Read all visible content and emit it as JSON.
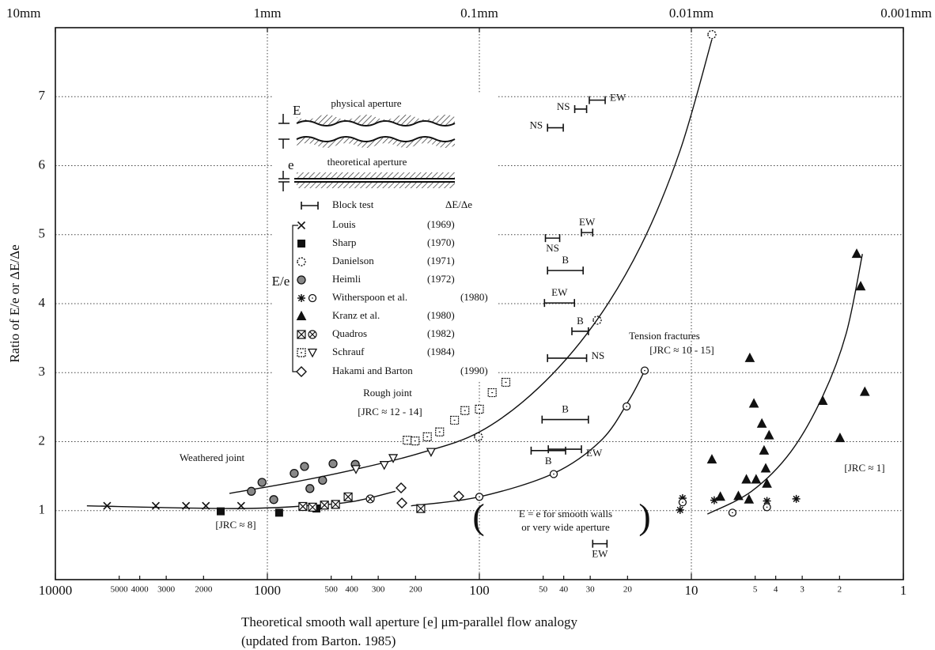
{
  "chart_data": {
    "type": "scatter",
    "ylabel": "Ratio of E/e or ΔE/Δe",
    "xlabel": "Theoretical smooth wall aperture [e] μm-parallel flow analogy",
    "xlabel_note": "(updated from Barton. 1985)",
    "xscale": "log",
    "xlim": [
      10000,
      1
    ],
    "ylim": [
      0,
      8
    ],
    "yticks": [
      1,
      2,
      3,
      4,
      5,
      6,
      7
    ],
    "xticks": [
      10000,
      5000,
      4000,
      3000,
      2000,
      1000,
      500,
      400,
      300,
      200,
      100,
      50,
      40,
      30,
      20,
      10,
      5,
      4,
      3,
      2,
      1
    ],
    "x2ticks": [
      {
        "value": 10000,
        "label": "10mm"
      },
      {
        "value": 1000,
        "label": "1mm"
      },
      {
        "value": 100,
        "label": "0.1mm"
      },
      {
        "value": 10,
        "label": "0.01mm"
      },
      {
        "value": 1,
        "label": "0.001mm"
      }
    ],
    "grid": true,
    "color": "#111111",
    "inset": {
      "E": "E",
      "physical": "physical aperture",
      "e": "e",
      "theoretical": "theoretical aperture"
    },
    "legend": {
      "block_test": "Block test",
      "ratio_label": "ΔE/Δe",
      "group_label": "E/e"
    },
    "series": [
      {
        "name": "Louis",
        "year": "(1969)",
        "groups": [
          {
            "marker": "x",
            "x": [
              5700,
              3360,
              2420,
              1950,
              1330
            ],
            "values": [
              1.07,
              1.07,
              1.07,
              1.07,
              1.07
            ]
          }
        ]
      },
      {
        "name": "Sharp",
        "year": "(1970)",
        "groups": [
          {
            "marker": "square-filled",
            "x": [
              1660,
              880,
              587
            ],
            "values": [
              0.99,
              0.97,
              1.03
            ]
          }
        ]
      },
      {
        "name": "Danielson",
        "year": "(1971)",
        "groups": [
          {
            "marker": "circle-dash",
            "x": [
              101,
              27.8,
              8.0
            ],
            "values": [
              2.07,
              3.76,
              7.9
            ]
          }
        ]
      },
      {
        "name": "Heimli",
        "year": "(1972)",
        "groups": [
          {
            "marker": "circle-dot",
            "x": [
              1190,
              1060,
              933,
              747,
              668,
              630,
              549,
              490,
              385
            ],
            "values": [
              1.28,
              1.41,
              1.16,
              1.54,
              1.64,
              1.32,
              1.44,
              1.68,
              1.67
            ]
          }
        ]
      },
      {
        "name": "Witherspoon et al.",
        "year": "(1980)",
        "groups": [
          {
            "marker": "star",
            "x": [
              11.3,
              11.0,
              7.8,
              4.4,
              3.2
            ],
            "values": [
              1.01,
              1.18,
              1.15,
              1.14,
              1.17
            ]
          },
          {
            "marker": "circle",
            "x": [
              100,
              44.6,
              20.2,
              16.6,
              11.0,
              6.4,
              4.4
            ],
            "values": [
              1.2,
              1.53,
              2.51,
              3.03,
              1.12,
              0.97,
              1.05
            ]
          }
        ]
      },
      {
        "name": "Kranz et al.",
        "year": "(1980)",
        "groups": [
          {
            "marker": "triangle-filled",
            "x": [
              1.66,
              1.59,
              1.52,
              1.99,
              2.4,
              5.3,
              5.07,
              4.65,
              4.3,
              4.54,
              4.46,
              8.0,
              7.3,
              6.0,
              5.5,
              4.95,
              4.4,
              5.35
            ],
            "values": [
              4.72,
              4.25,
              2.72,
              2.05,
              2.59,
              3.21,
              2.55,
              2.26,
              2.09,
              1.87,
              1.61,
              1.74,
              1.2,
              1.21,
              1.45,
              1.45,
              1.39,
              1.16
            ]
          }
        ]
      },
      {
        "name": "Quadros",
        "year": "(1982)",
        "groups": [
          {
            "marker": "square-x",
            "x": [
              680,
              612,
              538,
              477,
              416,
              189
            ],
            "values": [
              1.06,
              1.05,
              1.08,
              1.09,
              1.2,
              1.03
            ]
          },
          {
            "marker": "circle-x",
            "x": [
              327
            ],
            "values": [
              1.17
            ]
          }
        ]
      },
      {
        "name": "Schrauf",
        "year": "(1984)",
        "groups": [
          {
            "marker": "square-dot",
            "x": [
              219,
              201,
              176,
              154,
              131,
              117,
              100,
              87,
              75
            ],
            "values": [
              2.02,
              2.01,
              2.07,
              2.14,
              2.31,
              2.45,
              2.47,
              2.71,
              2.86
            ]
          },
          {
            "marker": "tri-down",
            "x": [
              382,
              281,
              255,
              169
            ],
            "values": [
              1.6,
              1.66,
              1.76,
              1.85
            ]
          }
        ]
      },
      {
        "name": "Hakami and Barton",
        "year": "(1990)",
        "groups": [
          {
            "marker": "diamond",
            "x": [
              234,
              232,
              125
            ],
            "values": [
              1.33,
              1.11,
              1.21
            ]
          }
        ]
      }
    ],
    "block_tests": [
      {
        "label": "EW",
        "y": 6.95,
        "x": [
          30.3,
          25.5
        ]
      },
      {
        "label": "NS",
        "y": 6.82,
        "x": [
          35.5,
          31.2
        ]
      },
      {
        "label": "NS",
        "y": 6.55,
        "x": [
          47.7,
          40.2
        ]
      },
      {
        "label": "EW",
        "y": 5.03,
        "x": [
          33.0,
          29.2
        ]
      },
      {
        "label": "NS",
        "y": 4.95,
        "x": [
          48.8,
          41.8
        ]
      },
      {
        "label": "B",
        "y": 4.48,
        "x": [
          47.7,
          32.4
        ]
      },
      {
        "label": "EW",
        "y": 4.01,
        "x": [
          49.3,
          35.6
        ]
      },
      {
        "label": "B",
        "y": 3.6,
        "x": [
          36.6,
          30.6
        ]
      },
      {
        "label": "NS",
        "y": 3.21,
        "x": [
          47.7,
          31.2
        ]
      },
      {
        "label": "B",
        "y": 2.32,
        "x": [
          50.6,
          30.6
        ]
      },
      {
        "label": "B",
        "y": 1.87,
        "x": [
          57,
          39.2
        ]
      },
      {
        "label": "EW",
        "y": 1.89,
        "x": [
          47.3,
          33.0
        ]
      },
      {
        "label": "EW",
        "y": 0.52,
        "x": [
          29.2,
          25.0
        ]
      }
    ],
    "curves": [
      {
        "x": [
          1510,
          760,
          382,
          192,
          100,
          53,
          29,
          17.3,
          11.3,
          8.0
        ],
        "values": [
          1.25,
          1.41,
          1.6,
          1.83,
          2.14,
          2.77,
          3.69,
          4.84,
          6.22,
          7.83
        ]
      },
      {
        "x": [
          7100,
          1390,
          587,
          382,
          249
        ],
        "values": [
          1.07,
          1.03,
          1.08,
          1.14,
          1.28
        ]
      },
      {
        "x": [
          210,
          100,
          44.6,
          26.6,
          19.7,
          16.6
        ],
        "values": [
          1.07,
          1.2,
          1.54,
          2.02,
          2.6,
          3.03
        ]
      },
      {
        "x": [
          8.4,
          5.2,
          3.4,
          2.4,
          1.86,
          1.56
        ],
        "values": [
          0.95,
          1.28,
          1.85,
          2.66,
          3.57,
          4.72
        ]
      }
    ],
    "annotations": [
      "Weathered joint",
      "[JRC ≈ 8]",
      "Rough joint",
      "[JRC ≈ 12 - 14]",
      "Tension fractures",
      "[JRC ≈ 10 - 15]",
      "[JRC ≈ 1]",
      "E = e for smooth walls",
      "or very wide aperture",
      "(",
      ")"
    ]
  }
}
